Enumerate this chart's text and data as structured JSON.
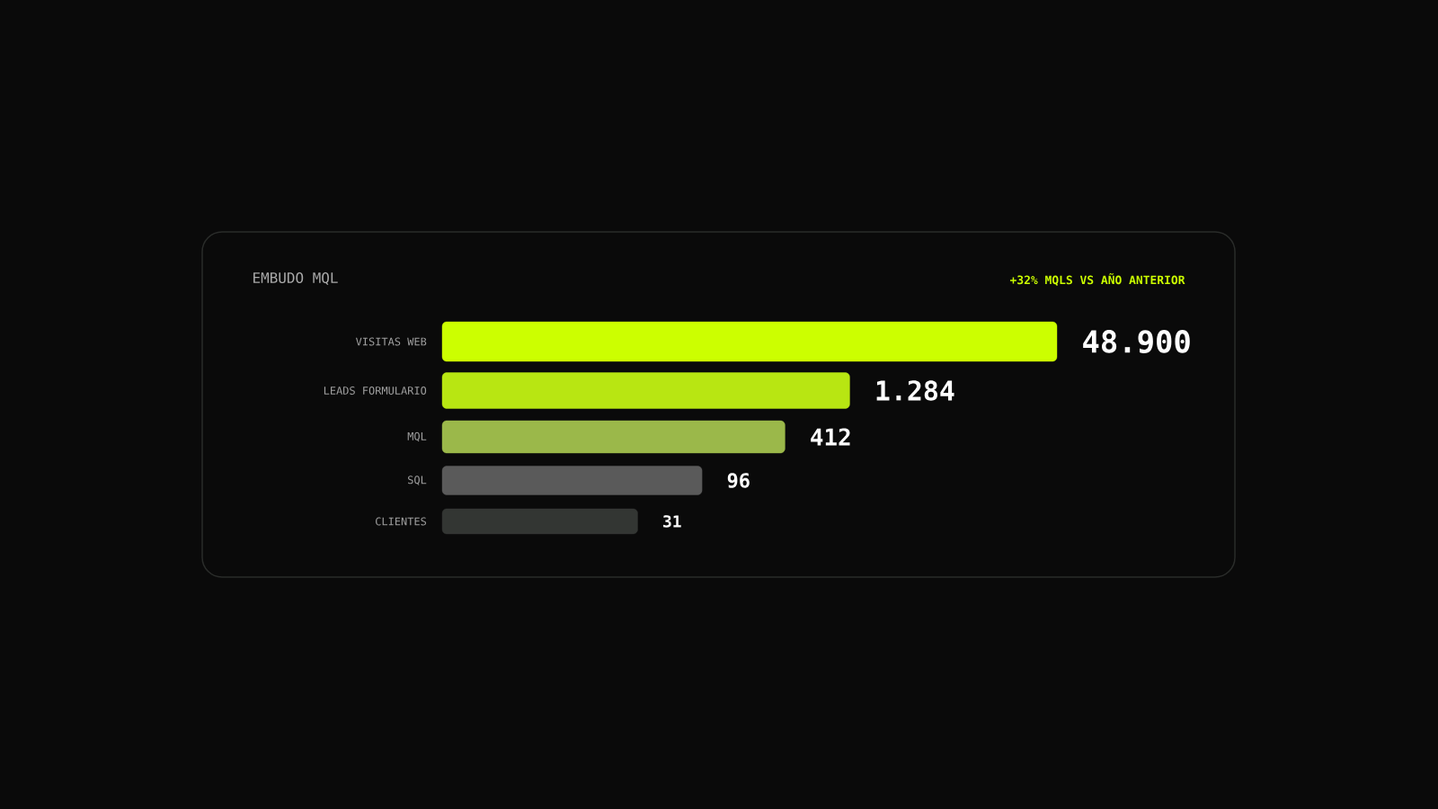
{
  "chart_data": {
    "type": "other",
    "title": "EMBUDO MQL",
    "subtitle": "+32% MQLS VS AÑO ANTERIOR",
    "categories": [
      "VISITAS WEB",
      "LEADS FORMULARIO",
      "MQL",
      "SQL",
      "CLIENTES"
    ],
    "values": [
      48900,
      1284,
      412,
      96,
      31
    ],
    "value_labels": [
      "48.900",
      "1.284",
      "412",
      "96",
      "31"
    ],
    "colors": [
      "#ccff00",
      "#b8e612",
      "#9bb84a",
      "#5a5a5a",
      "#333633"
    ]
  }
}
